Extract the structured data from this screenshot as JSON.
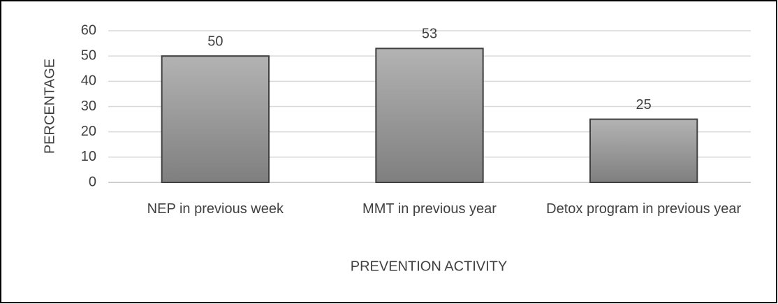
{
  "chart_data": {
    "type": "bar",
    "categories": [
      "NEP in previous week",
      "MMT in previous year",
      "Detox program in previous year"
    ],
    "values": [
      50,
      53,
      25
    ],
    "color": "#9a9a9a",
    "x_label": "PREVENTION ACTIVITY",
    "y_label": "PERCENTAGE",
    "ylim": [
      0,
      60
    ],
    "yticks": [
      0,
      10,
      20,
      30,
      40,
      50,
      60
    ],
    "grid": true
  }
}
